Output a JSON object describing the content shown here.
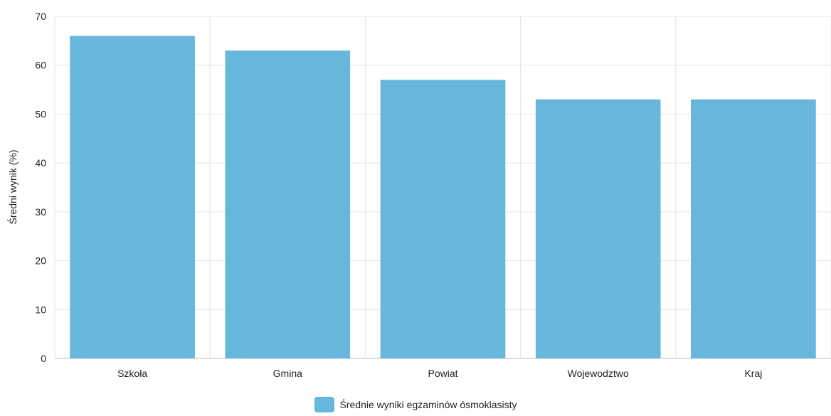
{
  "chart_data": {
    "type": "bar",
    "categories": [
      "Szkoła",
      "Gmina",
      "Powiat",
      "Wojewodztwo",
      "Kraj"
    ],
    "series": [
      {
        "name": "Średnie wyniki egzaminów ósmoklasisty",
        "values": [
          66,
          63,
          57,
          53,
          53
        ],
        "color": "#67b6dc"
      }
    ],
    "xlabel": "",
    "ylabel": "Średni wynik (%)",
    "ylim": [
      0,
      70
    ],
    "yticks": [
      0,
      10,
      20,
      30,
      40,
      50,
      60,
      70
    ],
    "grid": true,
    "legend_position": "bottom-center"
  }
}
